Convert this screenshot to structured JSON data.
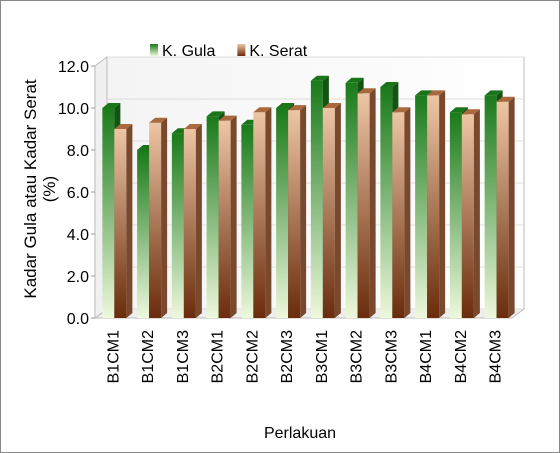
{
  "chart_data": {
    "type": "bar3d",
    "y_label": "Kadar Gula atau Kadar Serat (%)",
    "x_label": "Perlakuan",
    "categories": [
      "B1CM1",
      "B1CM2",
      "B1CM3",
      "B2CM1",
      "B2CM2",
      "B2CM3",
      "B3CM1",
      "B3CM2",
      "B3CM3",
      "B4CM1",
      "B4CM2",
      "B4CM3"
    ],
    "series": [
      {
        "name": "K. Gula",
        "color": "#1f8a1f",
        "values": [
          10.0,
          8.0,
          8.8,
          9.6,
          9.2,
          10.0,
          11.3,
          11.2,
          11.0,
          10.6,
          9.8,
          10.6
        ]
      },
      {
        "name": "K. Serat",
        "color": "#c87a4a",
        "values": [
          9.0,
          9.3,
          9.0,
          9.4,
          9.8,
          9.9,
          10.0,
          10.7,
          9.8,
          10.6,
          9.7,
          10.3
        ]
      }
    ],
    "ylim": [
      0,
      12
    ],
    "yticks": [
      {
        "value": 0,
        "label": "0.0"
      },
      {
        "value": 2,
        "label": "2.0"
      },
      {
        "value": 4,
        "label": "4.0"
      },
      {
        "value": 6,
        "label": "6.0"
      },
      {
        "value": 8,
        "label": "8.0"
      },
      {
        "value": 10,
        "label": "10.0"
      },
      {
        "value": 12,
        "label": "12.0"
      }
    ],
    "legend": "top"
  }
}
